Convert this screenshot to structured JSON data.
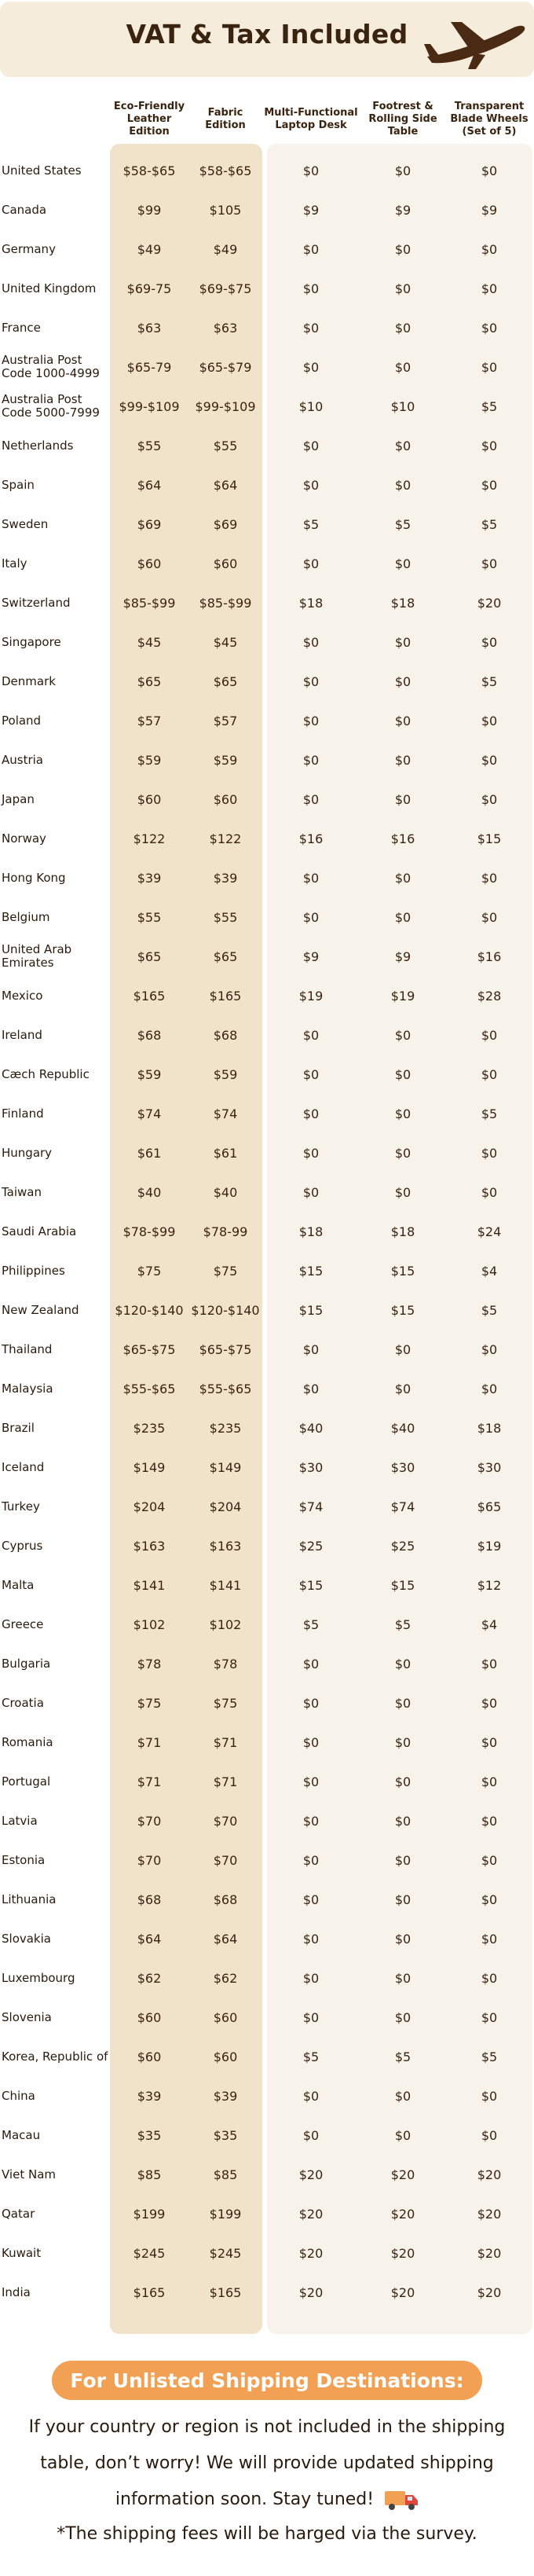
{
  "header": {
    "title": "VAT & Tax Included",
    "icon": "airplane-icon"
  },
  "columns": [
    "Eco-Friendly Leather Edition",
    "Fabric Edition",
    "Multi-Functional Laptop Desk",
    "Footrest & Rolling Side Table",
    "Transparent Blade Wheels (Set of 5)"
  ],
  "rows": [
    {
      "country": "United States",
      "values": [
        "$58-$65",
        "$58-$65",
        "$0",
        "$0",
        "$0"
      ]
    },
    {
      "country": "Canada",
      "values": [
        "$99",
        "$105",
        "$9",
        "$9",
        "$9"
      ]
    },
    {
      "country": "Germany",
      "values": [
        "$49",
        "$49",
        "$0",
        "$0",
        "$0"
      ]
    },
    {
      "country": "United Kingdom",
      "values": [
        "$69-75",
        "$69-$75",
        "$0",
        "$0",
        "$0"
      ]
    },
    {
      "country": "France",
      "values": [
        "$63",
        "$63",
        "$0",
        "$0",
        "$0"
      ]
    },
    {
      "country": "Australia Post Code 1000-4999",
      "values": [
        "$65-79",
        "$65-$79",
        "$0",
        "$0",
        "$0"
      ]
    },
    {
      "country": "Australia Post Code 5000-7999",
      "values": [
        "$99-$109",
        "$99-$109",
        "$10",
        "$10",
        "$5"
      ]
    },
    {
      "country": "Netherlands",
      "values": [
        "$55",
        "$55",
        "$0",
        "$0",
        "$0"
      ]
    },
    {
      "country": "Spain",
      "values": [
        "$64",
        "$64",
        "$0",
        "$0",
        "$0"
      ]
    },
    {
      "country": "Sweden",
      "values": [
        "$69",
        "$69",
        "$5",
        "$5",
        "$5"
      ]
    },
    {
      "country": "Italy",
      "values": [
        "$60",
        "$60",
        "$0",
        "$0",
        "$0"
      ]
    },
    {
      "country": "Switzerland",
      "values": [
        "$85-$99",
        "$85-$99",
        "$18",
        "$18",
        "$20"
      ]
    },
    {
      "country": "Singapore",
      "values": [
        "$45",
        "$45",
        "$0",
        "$0",
        "$0"
      ]
    },
    {
      "country": "Denmark",
      "values": [
        "$65",
        "$65",
        "$0",
        "$0",
        "$5"
      ]
    },
    {
      "country": "Poland",
      "values": [
        "$57",
        "$57",
        "$0",
        "$0",
        "$0"
      ]
    },
    {
      "country": "Austria",
      "values": [
        "$59",
        "$59",
        "$0",
        "$0",
        "$0"
      ]
    },
    {
      "country": "Japan",
      "values": [
        "$60",
        "$60",
        "$0",
        "$0",
        "$0"
      ]
    },
    {
      "country": "Norway",
      "values": [
        "$122",
        "$122",
        "$16",
        "$16",
        "$15"
      ]
    },
    {
      "country": "Hong Kong",
      "values": [
        "$39",
        "$39",
        "$0",
        "$0",
        "$0"
      ]
    },
    {
      "country": "Belgium",
      "values": [
        "$55",
        "$55",
        "$0",
        "$0",
        "$0"
      ]
    },
    {
      "country": "United Arab Emirates",
      "values": [
        "$65",
        "$65",
        "$9",
        "$9",
        "$16"
      ]
    },
    {
      "country": "Mexico",
      "values": [
        "$165",
        "$165",
        "$19",
        "$19",
        "$28"
      ]
    },
    {
      "country": "Ireland",
      "values": [
        "$68",
        "$68",
        "$0",
        "$0",
        "$0"
      ]
    },
    {
      "country": "Cæch Republic",
      "values": [
        "$59",
        "$59",
        "$0",
        "$0",
        "$0"
      ]
    },
    {
      "country": "Finland",
      "values": [
        "$74",
        "$74",
        "$0",
        "$0",
        "$5"
      ]
    },
    {
      "country": "Hungary",
      "values": [
        "$61",
        "$61",
        "$0",
        "$0",
        "$0"
      ]
    },
    {
      "country": "Taiwan",
      "values": [
        "$40",
        "$40",
        "$0",
        "$0",
        "$0"
      ]
    },
    {
      "country": "Saudi Arabia",
      "values": [
        "$78-$99",
        "$78-99",
        "$18",
        "$18",
        "$24"
      ]
    },
    {
      "country": "Philippines",
      "values": [
        "$75",
        "$75",
        "$15",
        "$15",
        "$4"
      ]
    },
    {
      "country": "New Zealand",
      "values": [
        "$120-$140",
        "$120-$140",
        "$15",
        "$15",
        "$5"
      ]
    },
    {
      "country": "Thailand",
      "values": [
        "$65-$75",
        "$65-$75",
        "$0",
        "$0",
        "$0"
      ]
    },
    {
      "country": "Malaysia",
      "values": [
        "$55-$65",
        "$55-$65",
        "$0",
        "$0",
        "$0"
      ]
    },
    {
      "country": "Brazil",
      "values": [
        "$235",
        "$235",
        "$40",
        "$40",
        "$18"
      ]
    },
    {
      "country": "Iceland",
      "values": [
        "$149",
        "$149",
        "$30",
        "$30",
        "$30"
      ]
    },
    {
      "country": "Turkey",
      "values": [
        "$204",
        "$204",
        "$74",
        "$74",
        "$65"
      ]
    },
    {
      "country": "Cyprus",
      "values": [
        "$163",
        "$163",
        "$25",
        "$25",
        "$19"
      ]
    },
    {
      "country": "Malta",
      "values": [
        "$141",
        "$141",
        "$15",
        "$15",
        "$12"
      ]
    },
    {
      "country": "Greece",
      "values": [
        "$102",
        "$102",
        "$5",
        "$5",
        "$4"
      ]
    },
    {
      "country": "Bulgaria",
      "values": [
        "$78",
        "$78",
        "$0",
        "$0",
        "$0"
      ]
    },
    {
      "country": "Croatia",
      "values": [
        "$75",
        "$75",
        "$0",
        "$0",
        "$0"
      ]
    },
    {
      "country": "Romania",
      "values": [
        "$71",
        "$71",
        "$0",
        "$0",
        "$0"
      ]
    },
    {
      "country": "Portugal",
      "values": [
        "$71",
        "$71",
        "$0",
        "$0",
        "$0"
      ]
    },
    {
      "country": "Latvia",
      "values": [
        "$70",
        "$70",
        "$0",
        "$0",
        "$0"
      ]
    },
    {
      "country": "Estonia",
      "values": [
        "$70",
        "$70",
        "$0",
        "$0",
        "$0"
      ]
    },
    {
      "country": "Lithuania",
      "values": [
        "$68",
        "$68",
        "$0",
        "$0",
        "$0"
      ]
    },
    {
      "country": "Slovakia",
      "values": [
        "$64",
        "$64",
        "$0",
        "$0",
        "$0"
      ]
    },
    {
      "country": "Luxembourg",
      "values": [
        "$62",
        "$62",
        "$0",
        "$0",
        "$0"
      ]
    },
    {
      "country": "Slovenia",
      "values": [
        "$60",
        "$60",
        "$0",
        "$0",
        "$0"
      ]
    },
    {
      "country": "Korea, Republic of",
      "values": [
        "$60",
        "$60",
        "$5",
        "$5",
        "$5"
      ]
    },
    {
      "country": "China",
      "values": [
        "$39",
        "$39",
        "$0",
        "$0",
        "$0"
      ]
    },
    {
      "country": "Macau",
      "values": [
        "$35",
        "$35",
        "$0",
        "$0",
        "$0"
      ]
    },
    {
      "country": "Viet Nam",
      "values": [
        "$85",
        "$85",
        "$20",
        "$20",
        "$20"
      ]
    },
    {
      "country": "Qatar",
      "values": [
        "$199",
        "$199",
        "$20",
        "$20",
        "$20"
      ]
    },
    {
      "country": "Kuwait",
      "values": [
        "$245",
        "$245",
        "$20",
        "$20",
        "$20"
      ]
    },
    {
      "country": "India",
      "values": [
        "$165",
        "$165",
        "$20",
        "$20",
        "$20"
      ]
    }
  ],
  "footer": {
    "pill": "For Unlisted Shipping Destinations:",
    "message": "If your country or region is not included in the shipping table, don’t worry! We will provide updated shipping information soon. Stay tuned!",
    "message_icon": "delivery-truck-icon",
    "note": "*The shipping fees will be harged via the survey."
  },
  "colors": {
    "banner_bg": "#f6ecdc",
    "edition_col_bg": "#f1e3c9",
    "accessory_col_bg": "#f7f2ea",
    "pill_bg": "#f2a154",
    "text": "#3a2410"
  }
}
